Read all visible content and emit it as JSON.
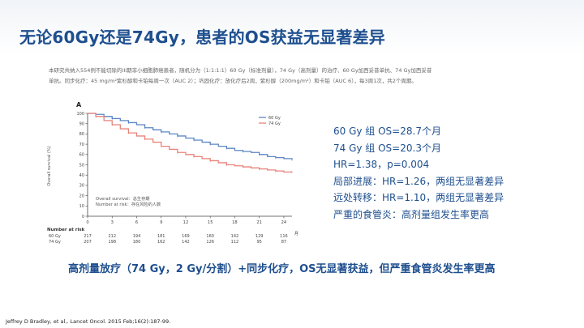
{
  "slide": {
    "title": "无论60Gy还是74Gy，患者的OS获益无显著差异",
    "description": [
      "本研究共纳入554例不能切除的III期非小细胞肺癌患者，随机分为（1:1:1:1）60 Gy（标准剂量），74 Gy（高剂量）的治疗、60 Gy加西妥昔单抗、74 Gy加西妥昔",
      "单抗。同步化疗：45 mg/m²紫杉醇和卡铂每周一次（AUC 2）；巩固化疗：放化疗后2周，紫杉醇（200mg/m²）和卡铂（AUC 6），每3周1次，共2个周期。"
    ],
    "results": [
      "60 Gy 组 OS=28.7个月",
      "74 Gy 组 OS=20.3个月",
      "HR=1.38，p=0.004",
      "局部进展：HR=1.26，两组无显著差异",
      "远处转移：HR=1.10，两组无显著差异",
      "严重的食管炎：高剂量组发生率更高"
    ],
    "conclusion": "高剂量放疗（74 Gy，2 Gy/分割）+同步化疗，OS无显著获益，但严重食管炎发生率更高",
    "citation": "Jeffrey D Bradley, et al,. Lancet Oncol. 2015 Feb;16(2):187-99."
  },
  "colors": {
    "title": "#1e4f8f",
    "series_60": "#5b86c4",
    "series_74": "#e8837a"
  },
  "chart_data": {
    "type": "line",
    "panel_label": "A",
    "ylabel": "Overall survival (%)",
    "xlabel_unit": "月",
    "ylim": [
      0,
      100
    ],
    "xlim": [
      0,
      25
    ],
    "yticks": [
      0,
      10,
      20,
      30,
      40,
      50,
      60,
      70,
      80,
      90,
      100
    ],
    "xticks": [
      0,
      3,
      6,
      9,
      12,
      15,
      18,
      21,
      24
    ],
    "legend": [
      "60 Gy",
      "74 Gy"
    ],
    "annotation": [
      "Overall survival：总生存期",
      "Number at risk：存在风险的人数"
    ],
    "number_at_risk_label": "Number at risk",
    "series": [
      {
        "name": "60 Gy",
        "x": [
          0,
          1,
          2,
          3,
          4,
          5,
          6,
          7,
          8,
          9,
          10,
          11,
          12,
          13,
          14,
          15,
          16,
          17,
          18,
          19,
          20,
          21,
          22,
          23,
          24,
          25
        ],
        "y": [
          100,
          99,
          97,
          95,
          93,
          91,
          89,
          86,
          84,
          82,
          80,
          78,
          76,
          74,
          72,
          70,
          68,
          66,
          64,
          63,
          62,
          60,
          58,
          57,
          56,
          55
        ],
        "at_risk": [
          "217",
          "212",
          "194",
          "181",
          "169",
          "160",
          "142",
          "129",
          "116"
        ]
      },
      {
        "name": "74 Gy",
        "x": [
          0,
          1,
          2,
          3,
          4,
          5,
          6,
          7,
          8,
          9,
          10,
          11,
          12,
          13,
          14,
          15,
          16,
          17,
          18,
          19,
          20,
          21,
          22,
          23,
          24,
          25
        ],
        "y": [
          100,
          97,
          93,
          89,
          85,
          81,
          78,
          75,
          72,
          68,
          65,
          62,
          60,
          58,
          56,
          54,
          52,
          50,
          49,
          48,
          47,
          46,
          45,
          44,
          43,
          43
        ],
        "at_risk": [
          "207",
          "198",
          "180",
          "162",
          "142",
          "126",
          "112",
          "95",
          "87"
        ]
      }
    ]
  }
}
